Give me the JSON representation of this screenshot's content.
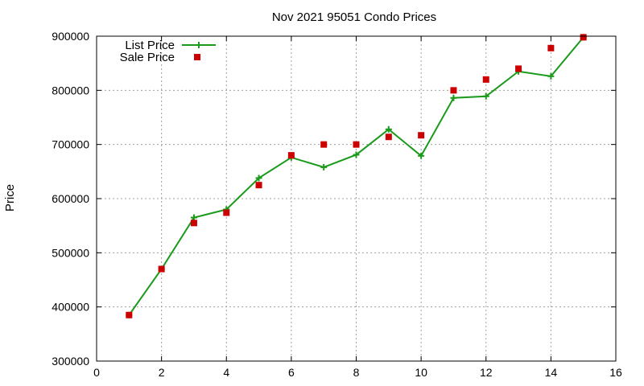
{
  "chart_data": {
    "type": "line",
    "title": "Nov 2021 95051 Condo Prices",
    "xlabel": "",
    "ylabel": "Price",
    "xlim": [
      0,
      16
    ],
    "ylim": [
      300000,
      900000
    ],
    "xticks": [
      0,
      2,
      4,
      6,
      8,
      10,
      12,
      14,
      16
    ],
    "yticks": [
      300000,
      400000,
      500000,
      600000,
      700000,
      800000,
      900000
    ],
    "grid": true,
    "legend_position": "top-left",
    "series": [
      {
        "name": "List Price",
        "style": "line-with-plus-markers",
        "color": "#1a9a1a",
        "x": [
          1,
          2,
          3,
          4,
          5,
          6,
          7,
          8,
          9,
          10,
          11,
          12,
          13,
          14,
          15
        ],
        "y": [
          385000,
          470000,
          565000,
          580000,
          638000,
          676000,
          658000,
          681000,
          728000,
          679000,
          786000,
          789000,
          835000,
          826000,
          898000
        ]
      },
      {
        "name": "Sale Price",
        "style": "square-markers",
        "color": "#cc0000",
        "x": [
          1,
          2,
          3,
          4,
          5,
          6,
          7,
          8,
          9,
          10,
          11,
          12,
          13,
          14,
          15
        ],
        "y": [
          385000,
          470000,
          555000,
          574000,
          625000,
          680000,
          700000,
          700000,
          714000,
          717000,
          800000,
          820000,
          840000,
          878000,
          898000
        ]
      }
    ]
  }
}
